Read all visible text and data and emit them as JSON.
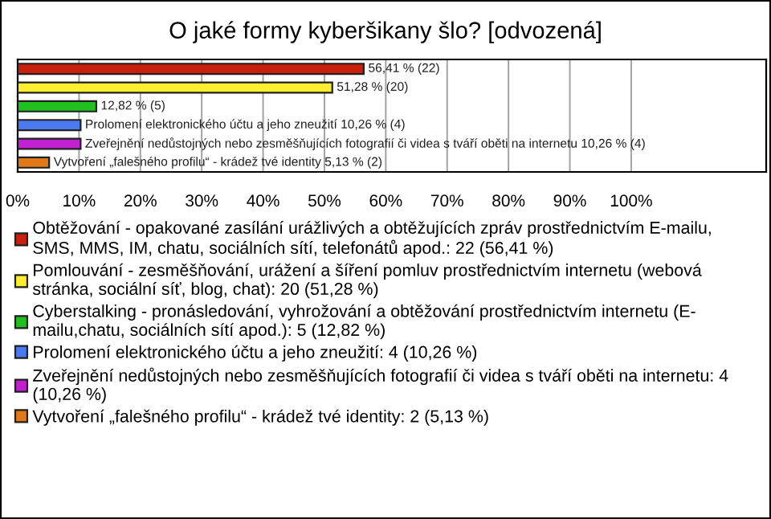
{
  "chart_data": {
    "type": "bar",
    "orientation": "horizontal",
    "title": "O jaké formy kyberšikany šlo? [odvozená]",
    "categories": [
      null,
      null,
      null,
      null,
      null,
      null
    ],
    "series": [
      {
        "name": "Obtěžování - opakované zasílání urážlivých a obtěžujících zpráv prostřednictvím E-mailu, SMS, MMS, IM, chatu, sociálních sítí, telefonátů apod.: 22 (56,41 %)",
        "color": "#c8200c",
        "values": [
          56.41,
          null,
          null,
          null,
          null,
          null
        ],
        "value_labels": [
          "56,41 % (22)",
          null,
          null,
          null,
          null,
          null
        ]
      },
      {
        "name": "Pomlouvání - zesměšňování, urážení a šíření pomluv prostřednictvím internetu (webová stránka, sociální síť, blog, chat): 20 (51,28 %)",
        "color": "#ffee30",
        "values": [
          null,
          51.28,
          null,
          null,
          null,
          null
        ],
        "value_labels": [
          null,
          "51,28 % (20)",
          null,
          null,
          null,
          null
        ]
      },
      {
        "name": "Cyberstalking - pronásledování, vyhrožování a obtěžování prostřednictvím internetu (E- mailu,chatu, sociálních sítí apod.): 5 (12,82 %)",
        "color": "#20c020",
        "values": [
          null,
          null,
          12.82,
          null,
          null,
          null
        ],
        "value_labels": [
          null,
          null,
          "12,82 % (5)",
          null,
          null,
          null
        ]
      },
      {
        "name": "Prolomení elektronického účtu a jeho zneužití: 4 (10,26 %)",
        "color": "#4a78f0",
        "values": [
          null,
          null,
          null,
          10.26,
          null,
          null
        ],
        "value_labels": [
          null,
          null,
          null,
          "Prolomení elektronického účtu a jeho zneužití 10,26 % (4)",
          null,
          null
        ]
      },
      {
        "name": "Zveřejnění nedůstojných nebo zesměšňujících fotografií či videa s tváří oběti na internetu: 4 (10,26 %)",
        "color": "#c020d0",
        "values": [
          null,
          null,
          null,
          null,
          10.26,
          null
        ],
        "value_labels": [
          null,
          null,
          null,
          null,
          "Zveřejnění nedůstojných nebo zesměšňujících fotografií či videa s tváří oběti na internetu 10,26 % (4)",
          null
        ]
      },
      {
        "name": "Vytvoření „falešného profilu“ - krádež tvé identity: 2 (5,13 %)",
        "color": "#e07818",
        "values": [
          null,
          null,
          null,
          null,
          null,
          5.13
        ],
        "value_labels": [
          null,
          null,
          null,
          null,
          null,
          "Vytvoření „falešného profilu“ - krádež tvé identity 5,13 % (2)"
        ]
      }
    ],
    "xlim": [
      0,
      122
    ],
    "xticks": [
      {
        "value": 0,
        "label": "0%"
      },
      {
        "value": 10,
        "label": "10%"
      },
      {
        "value": 20,
        "label": "20%"
      },
      {
        "value": 30,
        "label": "30%"
      },
      {
        "value": 40,
        "label": "40%"
      },
      {
        "value": 50,
        "label": "50%"
      },
      {
        "value": 60,
        "label": "60%"
      },
      {
        "value": 70,
        "label": "70%"
      },
      {
        "value": 80,
        "label": "80%"
      },
      {
        "value": 90,
        "label": "90%"
      },
      {
        "value": 100,
        "label": "100%"
      }
    ],
    "grid": "x",
    "legend": "bottom"
  }
}
